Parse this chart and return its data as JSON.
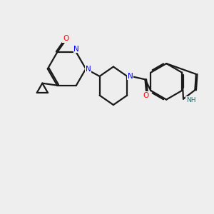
{
  "background_color": "#eeeeee",
  "bond_color": "#1a1a1a",
  "nitrogen_color": "#0000ff",
  "oxygen_color": "#ff0000",
  "nh_color": "#008080",
  "line_width": 1.6,
  "figsize": [
    3.0,
    3.0
  ],
  "dpi": 100,
  "xlim": [
    0,
    10
  ],
  "ylim": [
    0,
    10
  ]
}
